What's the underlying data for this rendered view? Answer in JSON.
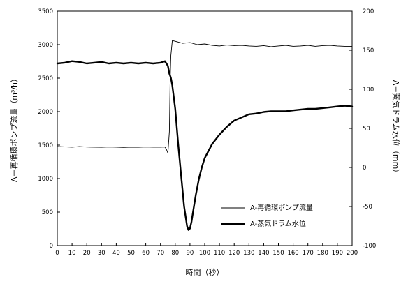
{
  "chart_data": {
    "type": "line",
    "xlabel": "時間（秒）",
    "ylabel_left": "A－再循環ポンプ流量（m³/h）",
    "ylabel_right": "A－蒸気ドラム水位（mm）",
    "xlim": [
      0,
      200
    ],
    "ylim_left": [
      0,
      3500
    ],
    "ylim_right": [
      -100,
      200
    ],
    "x_ticks": [
      0,
      10,
      20,
      30,
      40,
      50,
      60,
      70,
      80,
      90,
      100,
      110,
      120,
      130,
      140,
      150,
      160,
      170,
      180,
      190,
      200
    ],
    "y_ticks_left": [
      0,
      500,
      1000,
      1500,
      2000,
      2500,
      3000,
      3500
    ],
    "y_ticks_right": [
      -100,
      -50,
      0,
      50,
      100,
      150,
      200
    ],
    "grid": false,
    "legend_position": "lower-right",
    "series": [
      {
        "name": "A-再循環ポンプ流量",
        "axis": "left",
        "style": "thin",
        "x": [
          0,
          5,
          10,
          15,
          20,
          25,
          30,
          35,
          40,
          45,
          50,
          55,
          60,
          65,
          70,
          73,
          74,
          75,
          76,
          76.5,
          77,
          78,
          80,
          85,
          90,
          95,
          100,
          105,
          110,
          115,
          120,
          125,
          130,
          135,
          140,
          145,
          150,
          155,
          160,
          165,
          170,
          175,
          180,
          185,
          190,
          195,
          200
        ],
        "values": [
          1480,
          1475,
          1470,
          1478,
          1472,
          1470,
          1468,
          1472,
          1470,
          1466,
          1470,
          1468,
          1472,
          1470,
          1470,
          1472,
          1440,
          1380,
          1700,
          2400,
          2830,
          3060,
          3050,
          3020,
          3030,
          3000,
          3010,
          2990,
          2980,
          2995,
          2985,
          2990,
          2980,
          2975,
          2985,
          2970,
          2980,
          2990,
          2975,
          2980,
          2990,
          2975,
          2985,
          2990,
          2980,
          2975,
          2975
        ]
      },
      {
        "name": "A-蒸気ドラム水位",
        "axis": "right",
        "style": "thick",
        "x": [
          0,
          5,
          10,
          15,
          20,
          25,
          30,
          35,
          40,
          45,
          50,
          55,
          60,
          65,
          70,
          73,
          75,
          76,
          77,
          78,
          80,
          82,
          84,
          86,
          88,
          89,
          90,
          91,
          92,
          94,
          96,
          98,
          100,
          105,
          110,
          115,
          120,
          125,
          130,
          135,
          140,
          145,
          150,
          155,
          160,
          165,
          170,
          175,
          180,
          185,
          190,
          195,
          200
        ],
        "values": [
          133,
          134,
          136,
          135,
          133,
          134,
          135,
          133,
          134,
          133,
          134,
          133,
          134,
          133,
          134,
          136,
          130,
          120,
          115,
          105,
          75,
          30,
          -10,
          -50,
          -75,
          -80,
          -78,
          -70,
          -58,
          -35,
          -15,
          0,
          12,
          30,
          42,
          52,
          60,
          64,
          68,
          69,
          71,
          72,
          72,
          72,
          73,
          74,
          75,
          75,
          76,
          77,
          78,
          79,
          78
        ]
      }
    ]
  }
}
